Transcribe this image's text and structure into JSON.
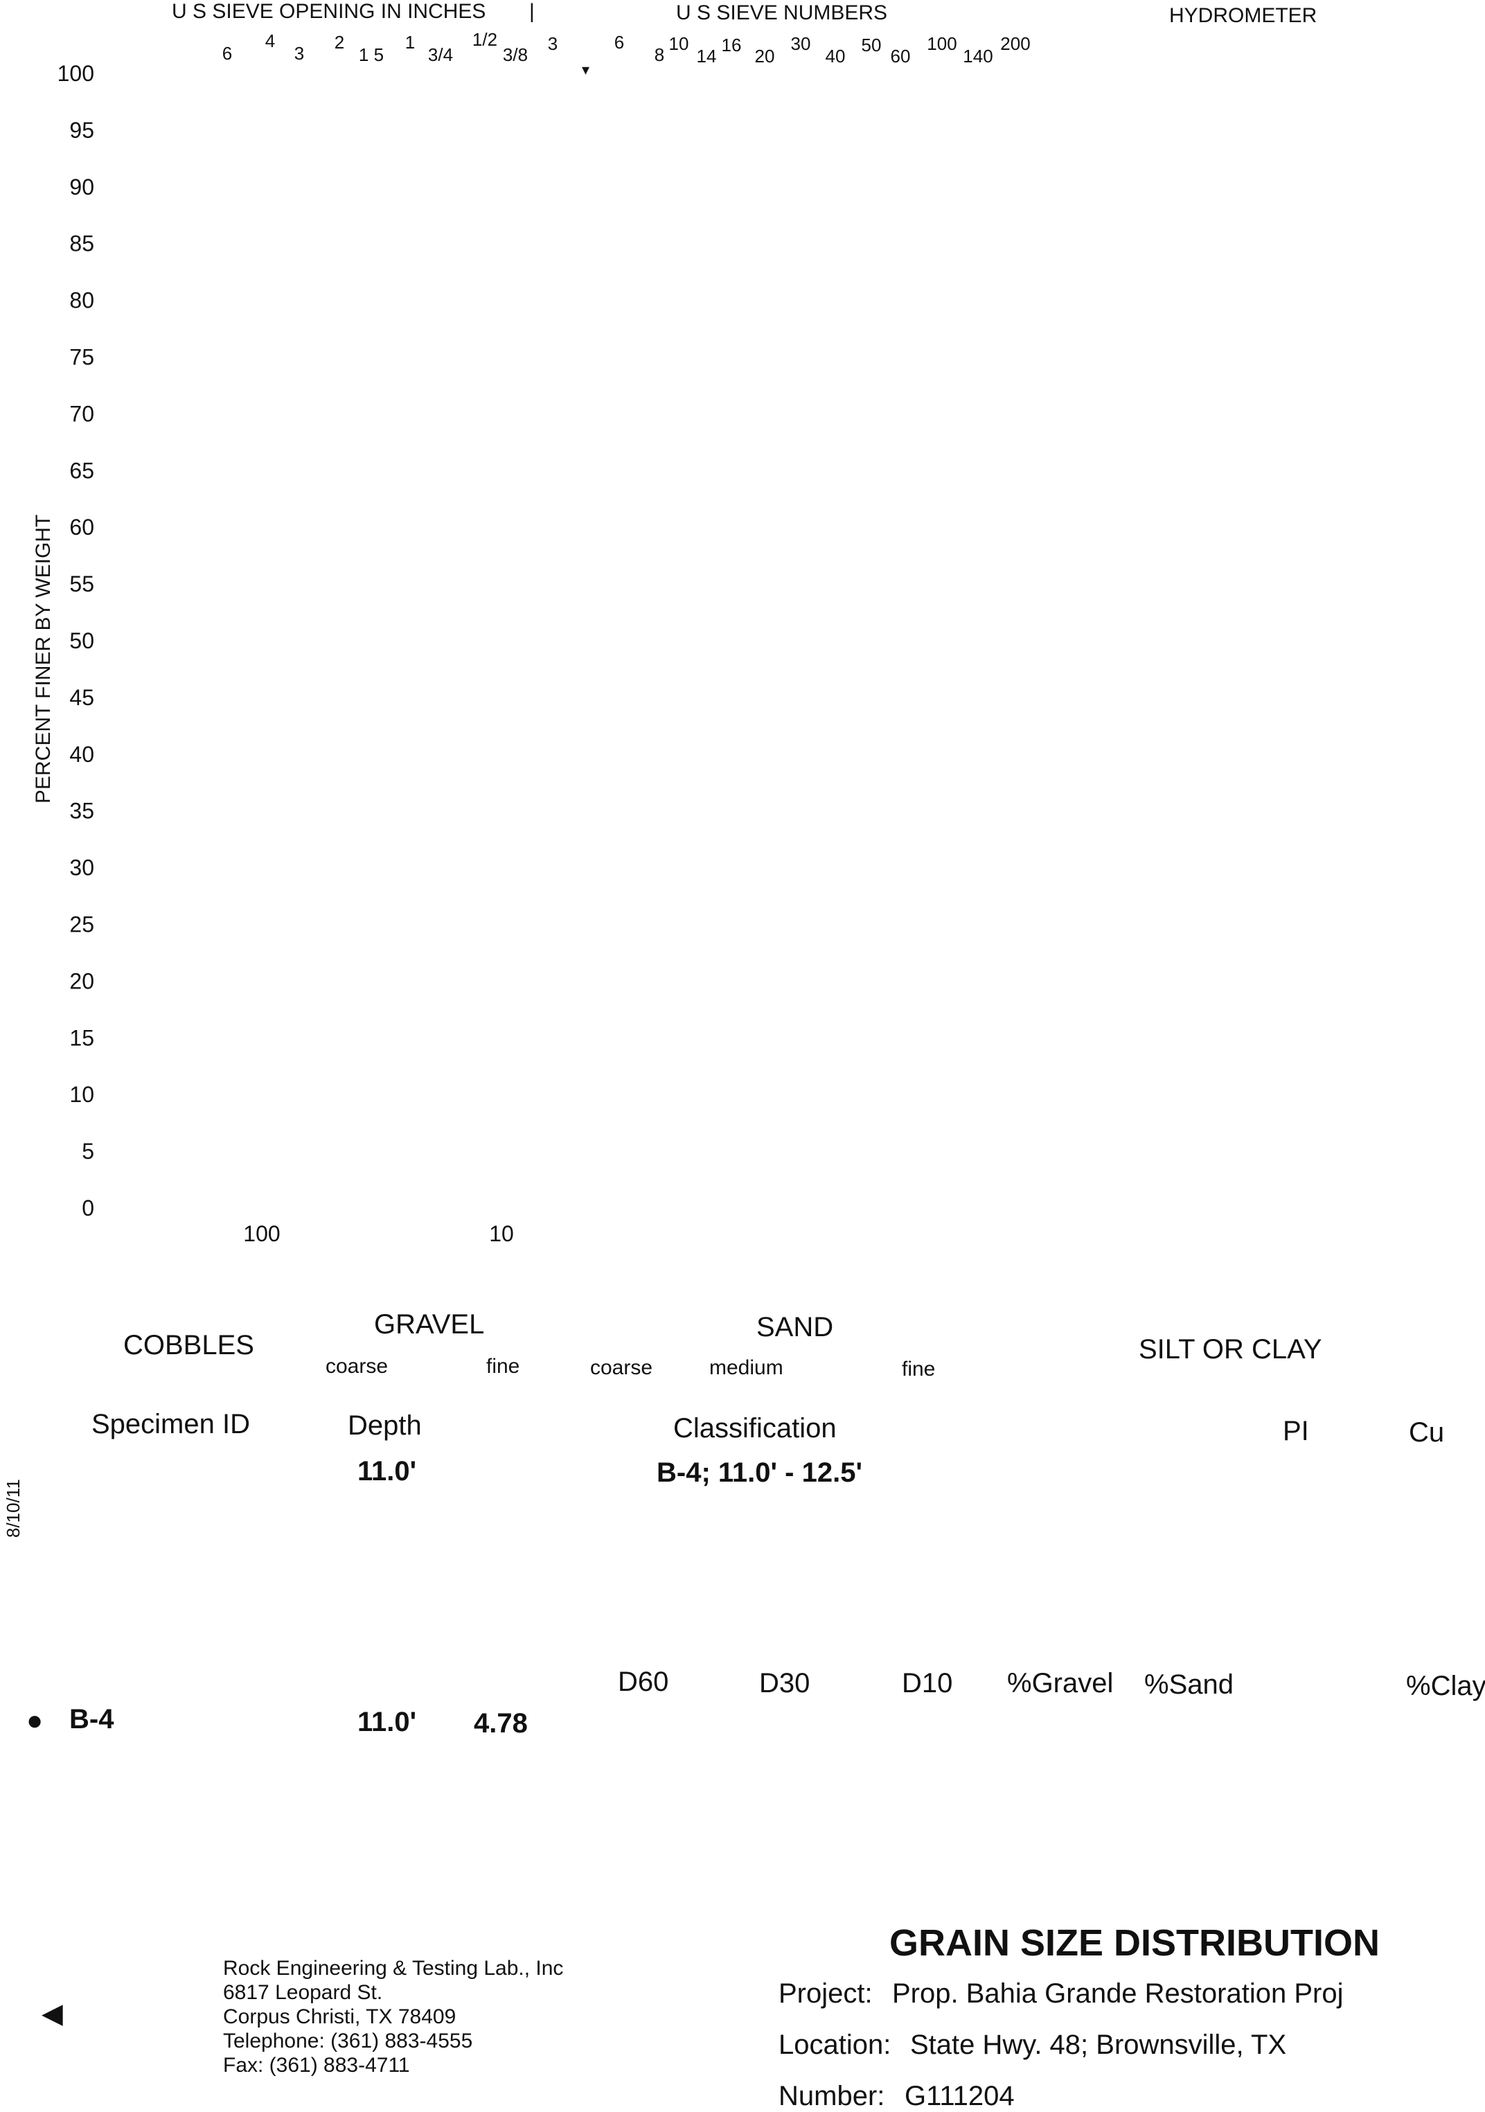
{
  "chart_data": {
    "type": "line",
    "title": "GRAIN SIZE DISTRIBUTION",
    "xlabel": "",
    "ylabel": "PERCENT FINER BY WEIGHT",
    "x_scale": "log",
    "xlim": [
      200,
      0.001
    ],
    "ylim": [
      0,
      100
    ],
    "y_ticks": [
      100,
      95,
      90,
      85,
      80,
      75,
      70,
      65,
      60,
      55,
      50,
      45,
      40,
      35,
      30,
      25,
      20,
      15,
      10,
      5,
      0
    ],
    "x_tick_labels": [
      "100",
      "10"
    ],
    "series": [
      {
        "name": "B-4",
        "marker": "circle",
        "points": []
      }
    ],
    "top_axis": {
      "sieve_inches_title": "U S  SIEVE OPENING IN INCHES",
      "separator": "|",
      "sieve_numbers_title": "U S  SIEVE NUMBERS",
      "hydrometer_title": "HYDROMETER",
      "inch_labels": [
        "6",
        "4",
        "3",
        "2",
        "1 5",
        "1",
        "3/4",
        "1/2",
        "3/8",
        "3"
      ],
      "number_labels": [
        "6",
        "8",
        "10",
        "14",
        "16",
        "20",
        "30",
        "40",
        "50",
        "60",
        "100",
        "140",
        "200"
      ]
    }
  },
  "stray_mark": "▾",
  "classification_bands": {
    "cobbles": "COBBLES",
    "gravel": "GRAVEL",
    "gravel_coarse": "coarse",
    "gravel_fine": "fine",
    "sand": "SAND",
    "sand_coarse": "coarse",
    "sand_medium": "medium",
    "sand_fine": "fine",
    "silt_clay": "SILT OR CLAY"
  },
  "table1": {
    "headers": {
      "specimen": "Specimen ID",
      "depth": "Depth",
      "classification": "Classification",
      "pi": "PI",
      "cu": "Cu"
    },
    "row": {
      "depth": "11.0'",
      "classification": "B-4; 11.0' - 12.5'"
    }
  },
  "table2": {
    "headers": {
      "d60": "D60",
      "d30": "D30",
      "d10": "D10",
      "gravel": "%Gravel",
      "sand": "%Sand",
      "clay": "%Clay"
    },
    "row": {
      "marker": "●",
      "specimen": "B-4",
      "depth": "11.0'",
      "value": "4.78"
    }
  },
  "side_date": "8/10/11",
  "left_arrow": "◀",
  "company": {
    "name": "Rock Engineering & Testing Lab., Inc",
    "street": "6817 Leopard St.",
    "city": "Corpus Christi, TX 78409",
    "telephone": "Telephone:  (361) 883-4555",
    "fax": "Fax:  (361) 883-4711"
  },
  "report": {
    "title": "GRAIN SIZE DISTRIBUTION",
    "project_label": "Project:",
    "project_value": "Prop. Bahia Grande Restoration Proj",
    "location_label": "Location:",
    "location_value": "State Hwy. 48; Brownsville, TX",
    "number_label": "Number:",
    "number_value": "G111204"
  }
}
